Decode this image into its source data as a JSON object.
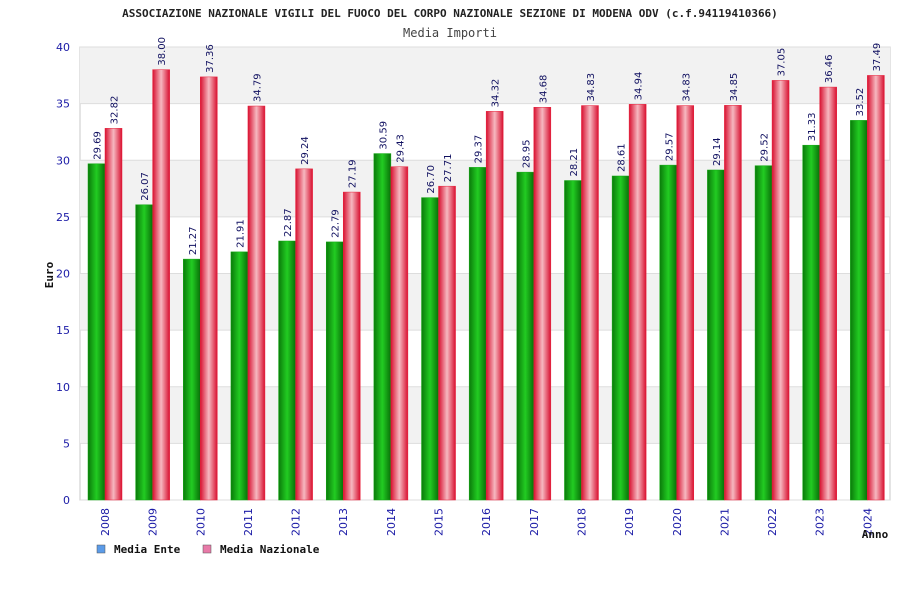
{
  "chart_data": {
    "type": "bar",
    "title": "ASSOCIAZIONE NAZIONALE VIGILI DEL FUOCO DEL CORPO NAZIONALE SEZIONE DI MODENA ODV (c.f.94119410366)",
    "subtitle": "Media Importi",
    "xlabel": "Anno",
    "ylabel": "Euro",
    "ylim": [
      0,
      40
    ],
    "yticks": [
      "0",
      "5",
      "10",
      "15",
      "20",
      "25",
      "30",
      "35",
      "40"
    ],
    "categories": [
      "2008",
      "2009",
      "2010",
      "2011",
      "2012",
      "2013",
      "2014",
      "2015",
      "2016",
      "2017",
      "2018",
      "2019",
      "2020",
      "2021",
      "2022",
      "2023",
      "2024"
    ],
    "series": [
      {
        "name": "Media Ente",
        "values": [
          29.69,
          26.07,
          21.27,
          21.91,
          22.87,
          22.79,
          30.59,
          26.7,
          29.37,
          28.95,
          28.21,
          28.61,
          29.57,
          29.14,
          29.52,
          31.33,
          33.52
        ],
        "labels": [
          "29.69",
          "26.07",
          "21.27",
          "21.91",
          "22.87",
          "22.79",
          "30.59",
          "26.70",
          "29.37",
          "28.95",
          "28.21",
          "28.61",
          "29.57",
          "29.14",
          "29.52",
          "31.33",
          "33.52"
        ],
        "color": "#11a811",
        "legend_color": "#5b9be8"
      },
      {
        "name": "Media Nazionale",
        "values": [
          32.82,
          38.0,
          37.36,
          34.79,
          29.24,
          27.19,
          29.43,
          27.71,
          34.32,
          34.68,
          34.83,
          34.94,
          34.83,
          34.85,
          37.05,
          36.46,
          37.49
        ],
        "labels": [
          "32.82",
          "38.00",
          "37.36",
          "34.79",
          "29.24",
          "27.19",
          "29.43",
          "27.71",
          "34.32",
          "34.68",
          "34.83",
          "34.94",
          "34.83",
          "34.85",
          "37.05",
          "36.46",
          "37.49"
        ],
        "color": "#e8203a",
        "legend_color": "#e87aa8"
      }
    ],
    "grid": true,
    "legend": "bottom-left"
  }
}
